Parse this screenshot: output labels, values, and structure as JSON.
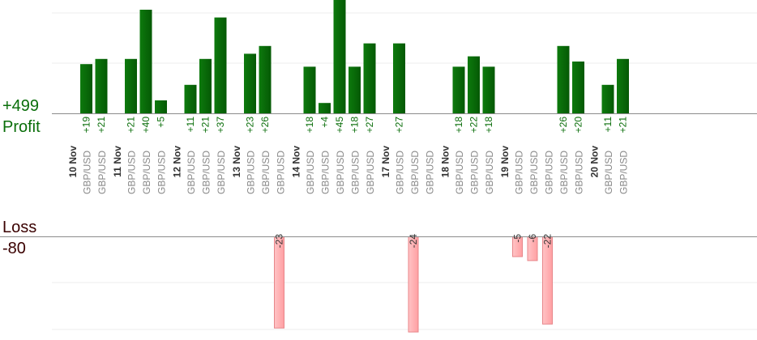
{
  "summary": {
    "profit_total": "+499",
    "profit_label": "Profit",
    "loss_label": "Loss",
    "loss_total": "-80"
  },
  "colors": {
    "profit": "#0a6b0a",
    "profit_text": "#0a6e0a",
    "loss": "#ffb3b5",
    "loss_stroke": "#e8868a",
    "pair_text": "#888888",
    "date_text": "#333333",
    "baseline": "#8c8c8c",
    "grid": "#eeeeee"
  },
  "chart_data": {
    "type": "bar",
    "title": "",
    "ylim_profit": [
      0,
      45
    ],
    "ylim_loss": [
      -24,
      0
    ],
    "days": [
      {
        "date": "10 Nov",
        "trades": [
          {
            "pair": "GBP/USD",
            "value": 19
          },
          {
            "pair": "GBP/USD",
            "value": 21
          }
        ]
      },
      {
        "date": "11 Nov",
        "trades": [
          {
            "pair": "GBP/USD",
            "value": 21
          },
          {
            "pair": "GBP/USD",
            "value": 40
          },
          {
            "pair": "GBP/USD",
            "value": 5
          }
        ]
      },
      {
        "date": "12 Nov",
        "trades": [
          {
            "pair": "GBP/USD",
            "value": 11
          },
          {
            "pair": "GBP/USD",
            "value": 21
          },
          {
            "pair": "GBP/USD",
            "value": 37
          }
        ]
      },
      {
        "date": "13 Nov",
        "trades": [
          {
            "pair": "GBP/USD",
            "value": 23
          },
          {
            "pair": "GBP/USD",
            "value": 26
          },
          {
            "pair": "GBP/USD",
            "value": -23
          }
        ]
      },
      {
        "date": "14 Nov",
        "trades": [
          {
            "pair": "GBP/USD",
            "value": 18
          },
          {
            "pair": "GBP/USD",
            "value": 4
          },
          {
            "pair": "GBP/USD",
            "value": 45
          },
          {
            "pair": "GBP/USD",
            "value": 18
          },
          {
            "pair": "GBP/USD",
            "value": 27
          }
        ]
      },
      {
        "date": "17 Nov",
        "trades": [
          {
            "pair": "GBP/USD",
            "value": 27
          },
          {
            "pair": "GBP/USD",
            "value": -24
          },
          {
            "pair": "GBP/USD",
            "value": null
          }
        ]
      },
      {
        "date": "18 Nov",
        "trades": [
          {
            "pair": "GBP/USD",
            "value": 18
          },
          {
            "pair": "GBP/USD",
            "value": 22
          },
          {
            "pair": "GBP/USD",
            "value": 18
          }
        ]
      },
      {
        "date": "19 Nov",
        "trades": [
          {
            "pair": "GBP/USD",
            "value": -5
          },
          {
            "pair": "GBP/USD",
            "value": -6
          },
          {
            "pair": "GBP/USD",
            "value": -22
          },
          {
            "pair": "GBP/USD",
            "value": 26
          },
          {
            "pair": "GBP/USD",
            "value": 20
          }
        ]
      },
      {
        "date": "20 Nov",
        "trades": [
          {
            "pair": "GBP/USD",
            "value": 11
          },
          {
            "pair": "GBP/USD",
            "value": 21
          }
        ]
      }
    ]
  }
}
